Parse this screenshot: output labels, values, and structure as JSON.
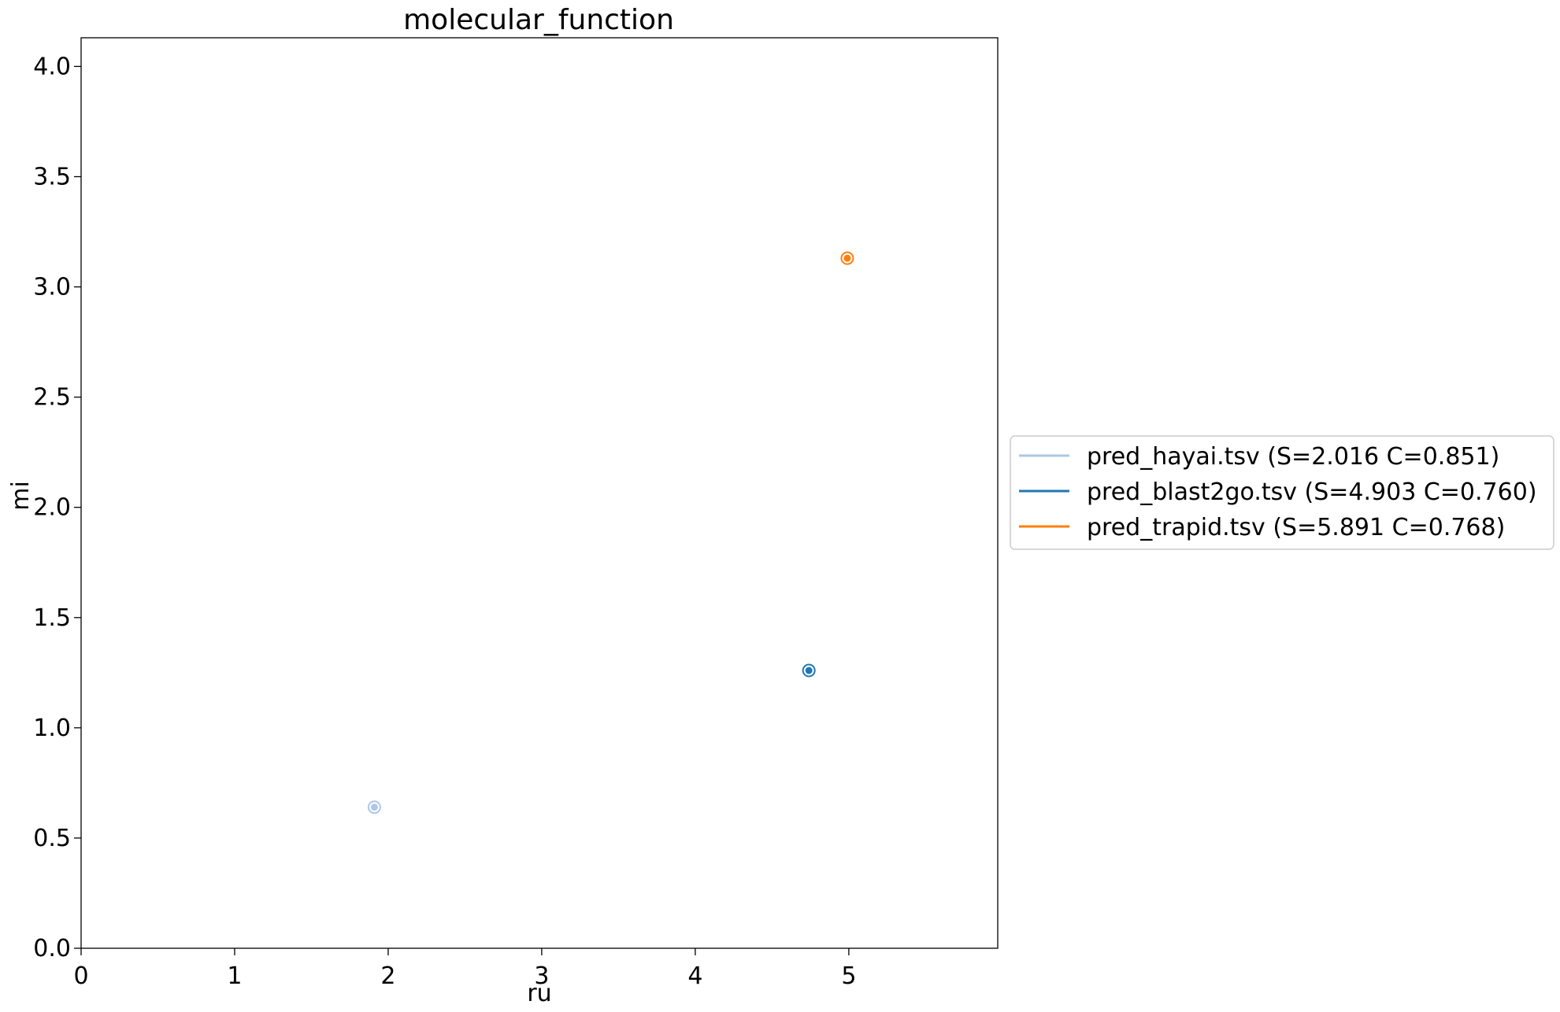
{
  "chart_data": {
    "type": "scatter",
    "title": "molecular_function",
    "xlabel": "ru",
    "ylabel": "mi",
    "xlim": [
      0,
      5.97
    ],
    "ylim": [
      0,
      4.13
    ],
    "xticks": [
      0,
      1,
      2,
      3,
      4,
      5
    ],
    "xtick_labels": [
      "0",
      "1",
      "2",
      "3",
      "4",
      "5"
    ],
    "yticks": [
      0,
      0.5,
      1,
      1.5,
      2,
      2.5,
      3,
      3.5,
      4
    ],
    "ytick_labels": [
      "0.0",
      "0.5",
      "1.0",
      "1.5",
      "2.0",
      "2.5",
      "3.0",
      "3.5",
      "4.0"
    ],
    "grid": false,
    "legend_position": "center-right, outside plot",
    "series": [
      {
        "name": "pred_hayai.tsv (S=2.016 C=0.851)",
        "color": "#aec7e8",
        "points": [
          {
            "x": 1.91,
            "y": 0.64
          }
        ]
      },
      {
        "name": "pred_blast2go.tsv (S=4.903 C=0.760)",
        "color": "#1f77b4",
        "points": [
          {
            "x": 4.74,
            "y": 1.26
          }
        ]
      },
      {
        "name": "pred_trapid.tsv (S=5.891 C=0.768)",
        "color": "#ff7f0e",
        "points": [
          {
            "x": 4.99,
            "y": 3.13
          }
        ]
      }
    ]
  }
}
